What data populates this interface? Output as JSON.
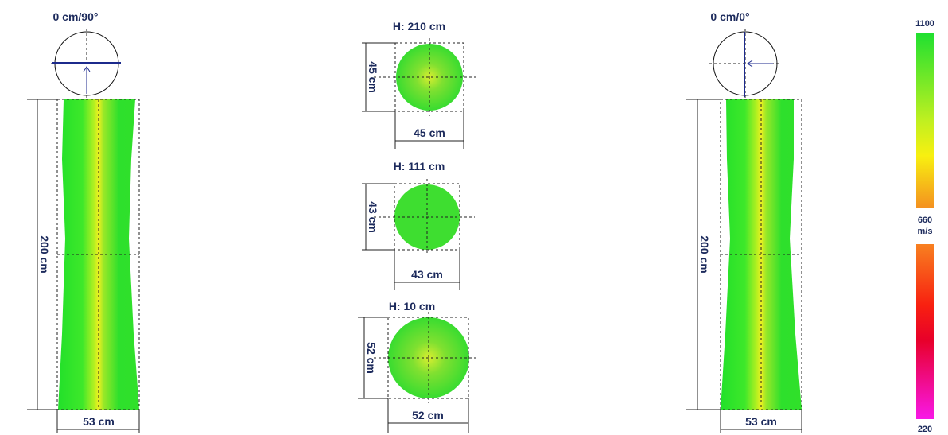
{
  "left_view": {
    "orientation": "0 cm/90°",
    "height": "200 cm",
    "width": "53 cm"
  },
  "sections": [
    {
      "height": "H: 210 cm",
      "side": "45 cm",
      "bottom": "45 cm"
    },
    {
      "height": "H: 111 cm",
      "side": "43 cm",
      "bottom": "43 cm"
    },
    {
      "height": "H: 10 cm",
      "side": "52 cm",
      "bottom": "52 cm"
    }
  ],
  "right_view": {
    "orientation": "0 cm/0°",
    "height": "200 cm",
    "width": "53 cm"
  },
  "scale": {
    "max": "1100",
    "mid": "660",
    "unit": "m/s",
    "min": "220"
  }
}
